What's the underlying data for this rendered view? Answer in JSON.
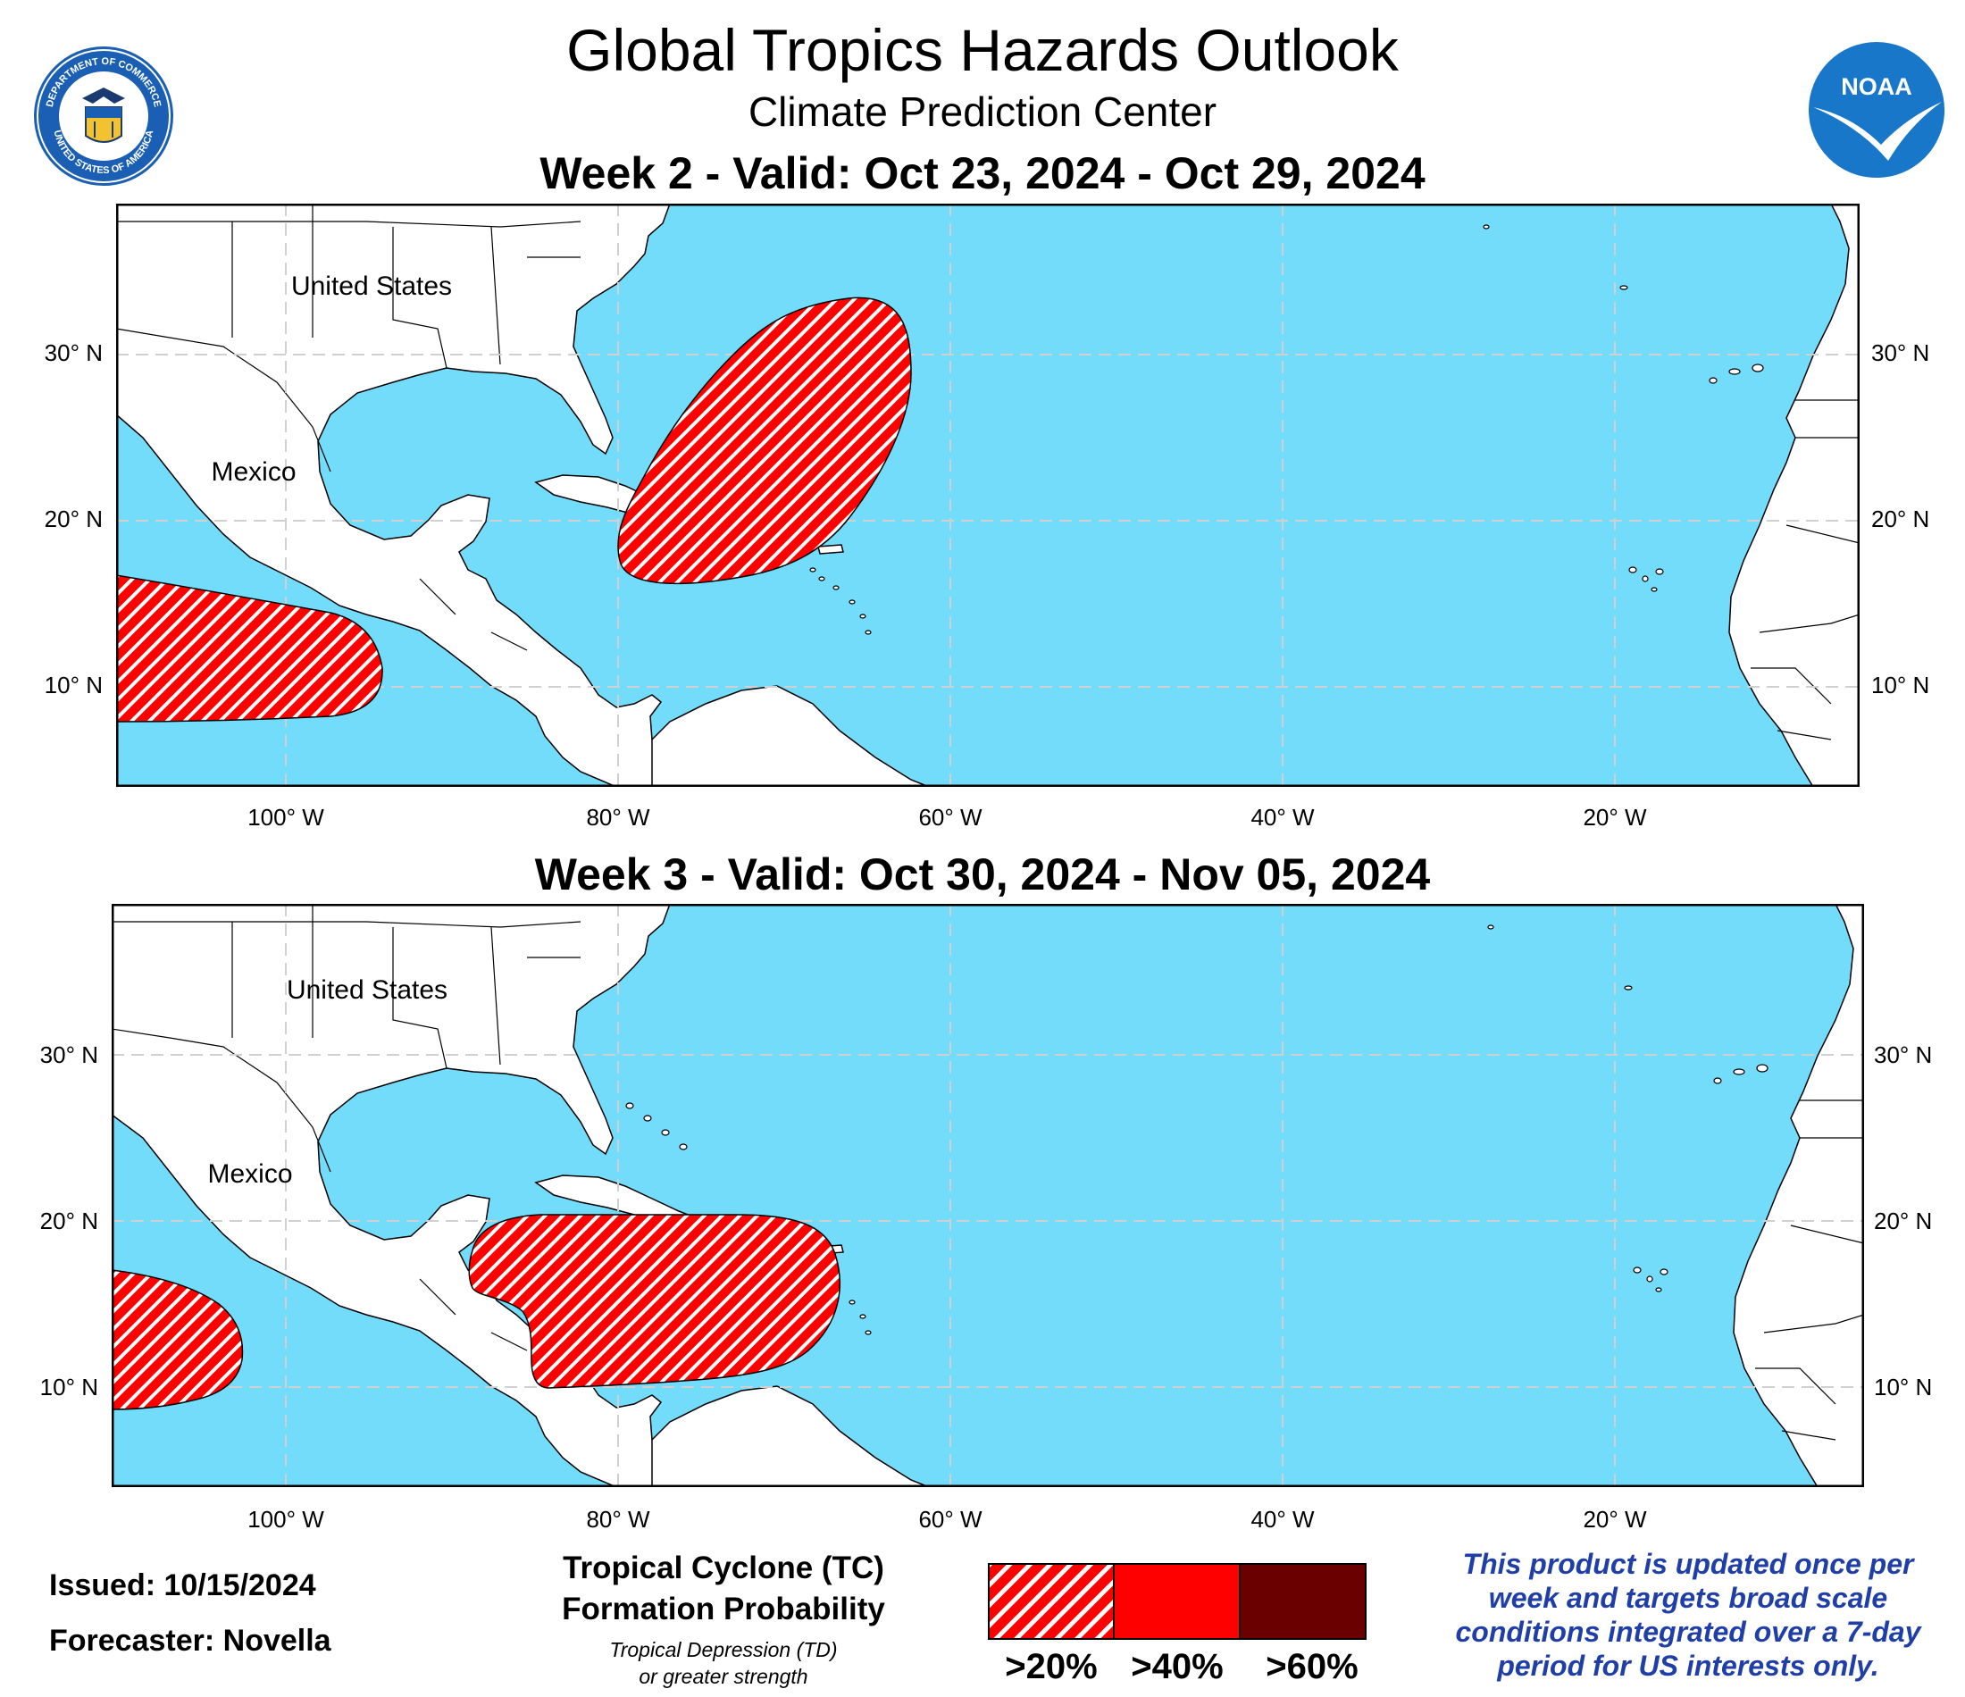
{
  "header": {
    "title": "Global Tropics Hazards Outlook",
    "subtitle": "Climate Prediction Center",
    "left_logo": {
      "name": "department-of-commerce-seal",
      "text_top": "DEPARTMENT OF COMMERCE",
      "text_bottom": "UNITED STATES OF AMERICA",
      "color": "#1a5fb4"
    },
    "right_logo": {
      "name": "noaa-logo",
      "text": "NOAA",
      "color": "#1877c9"
    }
  },
  "maps": [
    {
      "id": "week2",
      "title": "Week 2 - Valid: Oct 23, 2024 - Oct 29, 2024",
      "place_labels": [
        "United States",
        "Mexico"
      ],
      "lat_ticks": [
        "30° N",
        "20° N",
        "10° N"
      ],
      "lon_ticks": [
        "100° W",
        "80° W",
        "60° W",
        "40° W",
        "20° W"
      ],
      "hazards": [
        {
          "name": "eastern-pacific-tc-area",
          "category": ">20%"
        },
        {
          "name": "western-atlantic-tc-area",
          "category": ">20%"
        }
      ]
    },
    {
      "id": "week3",
      "title": "Week 3 - Valid: Oct 30, 2024 - Nov 05, 2024",
      "place_labels": [
        "United States",
        "Mexico"
      ],
      "lat_ticks": [
        "30° N",
        "20° N",
        "10° N"
      ],
      "lon_ticks": [
        "100° W",
        "80° W",
        "60° W",
        "40° W",
        "20° W"
      ],
      "hazards": [
        {
          "name": "eastern-pacific-tc-area",
          "category": ">20%"
        },
        {
          "name": "caribbean-tc-area",
          "category": ">20%"
        }
      ]
    }
  ],
  "footer": {
    "issued": "Issued: 10/15/2024",
    "forecaster": "Forecaster: Novella",
    "legend_title_line1": "Tropical Cyclone (TC)",
    "legend_title_line2": "Formation Probability",
    "legend_note_line1": "Tropical Depression (TD)",
    "legend_note_line2": "or greater strength",
    "legend_items": [
      {
        "label": ">20%",
        "color": "#ff0000",
        "style": "hatched"
      },
      {
        "label": ">40%",
        "color": "#ff0000",
        "style": "solid"
      },
      {
        "label": ">60%",
        "color": "#6b0000",
        "style": "solid"
      }
    ],
    "disclaimer_lines": [
      "This product is updated once per",
      "week and targets broad scale",
      "conditions integrated over a 7-day",
      "period for US interests only."
    ]
  },
  "colors": {
    "ocean": "#74dcfb",
    "land": "#ffffff",
    "hazard": "#ff0000",
    "grid": "#d0d0d0",
    "disclaimer": "#1f3ea8"
  }
}
